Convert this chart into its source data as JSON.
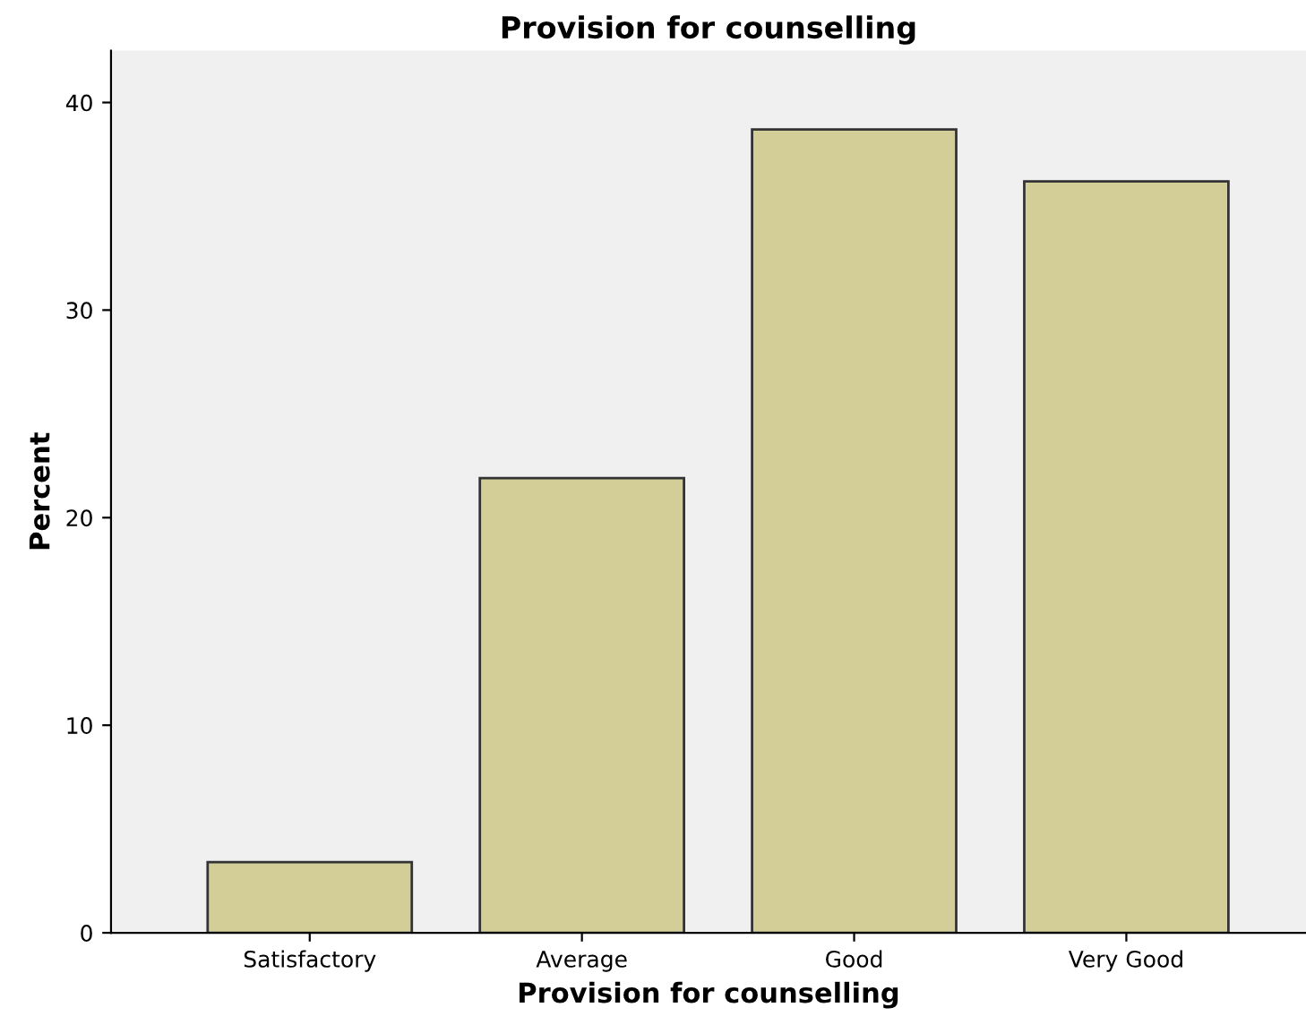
{
  "chart_data": {
    "type": "bar",
    "title": "Provision for counselling",
    "xlabel": "Provision for counselling",
    "ylabel": "Percent",
    "categories": [
      "Satisfactory",
      "Average",
      "Good",
      "Very Good"
    ],
    "values": [
      3.4,
      21.9,
      38.7,
      36.2
    ],
    "color": "#d3ce97",
    "ylim": [
      0,
      42.5
    ],
    "yticks": [
      0,
      10,
      20,
      30,
      40
    ],
    "grid": false
  }
}
